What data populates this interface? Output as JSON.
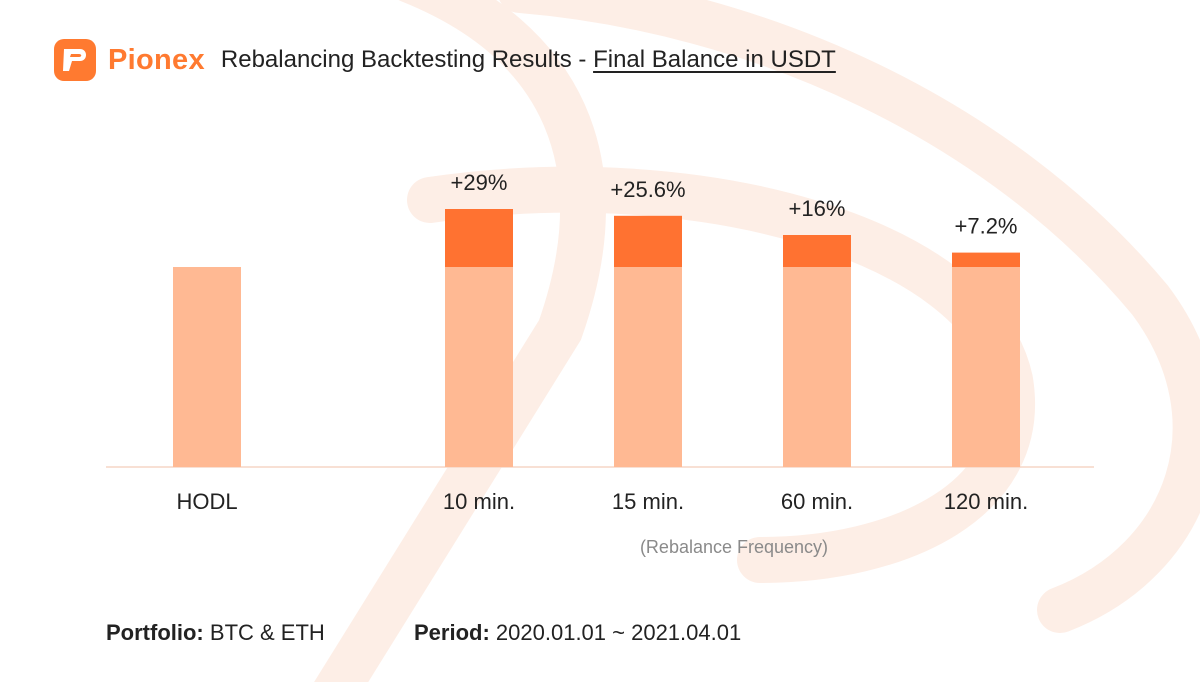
{
  "header": {
    "brand": "Pionex",
    "title_prefix": "Rebalancing Backtesting Results - ",
    "title_emphasis": "Final Balance in USDT"
  },
  "colors": {
    "brand": "#ff7a30",
    "bar_base": "#ffb993",
    "bar_gain": "#ff7231",
    "baseline": "#f6d5c6",
    "watermark": "#fdeee6"
  },
  "chart_data": {
    "type": "bar",
    "stacked": true,
    "categories": [
      "HODL",
      "10 min.",
      "15 min.",
      "60 min.",
      "120 min."
    ],
    "x_note": "(Rebalance Frequency)",
    "series": [
      {
        "key": "base",
        "values": [
          100,
          100,
          100,
          100,
          100
        ]
      },
      {
        "key": "gain",
        "values": [
          0,
          29,
          25.6,
          16,
          7.2
        ]
      }
    ],
    "data_labels": [
      "",
      "+29%",
      "+25.6%",
      "+16%",
      "+7.2%"
    ],
    "ylim": [
      0,
      140
    ],
    "grid": false,
    "legend": "none"
  },
  "captions": {
    "portfolio_label": "Portfolio:",
    "portfolio_value": "BTC & ETH",
    "period_label": "Period:",
    "period_value": "2020.01.01 ~ 2021.04.01"
  }
}
